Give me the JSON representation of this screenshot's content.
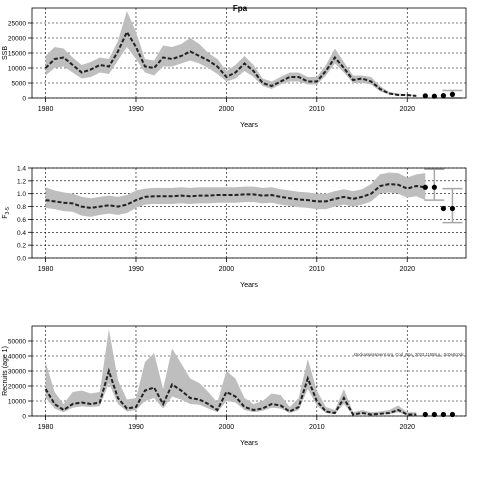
{
  "title": "Fpa",
  "watermark": "stockassessment.org, Cod_Fpa_2023.11558.g...0c0e0c0dc",
  "chart_data": [
    {
      "type": "line",
      "key": "ssb",
      "xlabel": "Years",
      "ylabel": "SSB",
      "xlim": [
        1978.5,
        2026.5
      ],
      "ylim": [
        0,
        30000
      ],
      "xticks": [
        1980,
        1990,
        2000,
        2010,
        2020
      ],
      "yticks": [
        0,
        5000,
        10000,
        15000,
        20000,
        25000
      ],
      "ytick_labels": [
        "0",
        "5000",
        "10000",
        "15000",
        "20000",
        "25000"
      ],
      "grid": true,
      "series": [
        {
          "x": [
            1980,
            1981,
            1982,
            1983,
            1984,
            1985,
            1986,
            1987,
            1988,
            1989,
            1990,
            1991,
            1992,
            1993,
            1994,
            1995,
            1996,
            1997,
            1998,
            1999,
            2000,
            2001,
            2002,
            2003,
            2004,
            2005,
            2006,
            2007,
            2008,
            2009,
            2010,
            2011,
            2012,
            2013,
            2014,
            2015,
            2016,
            2017,
            2018,
            2019,
            2020,
            2021
          ],
          "y": [
            10000,
            13000,
            13500,
            11000,
            8500,
            9500,
            11000,
            10500,
            15500,
            22000,
            17000,
            10500,
            10000,
            13500,
            13000,
            14000,
            15500,
            14000,
            12500,
            10500,
            7000,
            8500,
            11500,
            9000,
            5000,
            4000,
            5500,
            7000,
            7000,
            5500,
            5500,
            9000,
            13500,
            10000,
            6000,
            6500,
            5500,
            3000,
            1500,
            1000,
            1000,
            700
          ],
          "lower": [
            7500,
            10000,
            10500,
            8500,
            6500,
            7000,
            8500,
            8000,
            12500,
            17000,
            13000,
            8500,
            7500,
            10500,
            10500,
            11500,
            12500,
            11500,
            10000,
            8000,
            5500,
            6500,
            9000,
            7000,
            4000,
            3000,
            4500,
            5500,
            5500,
            4500,
            4500,
            7500,
            11500,
            8500,
            5000,
            5000,
            4500,
            2200,
            1200,
            800,
            800,
            500
          ],
          "upper": [
            14000,
            17000,
            16500,
            13500,
            11000,
            12000,
            13500,
            13000,
            19000,
            29000,
            22000,
            13000,
            12500,
            17500,
            17000,
            18000,
            20000,
            18000,
            15000,
            13000,
            9000,
            11000,
            14000,
            11000,
            6500,
            5500,
            7000,
            8500,
            8500,
            7000,
            7000,
            11000,
            16500,
            12000,
            7500,
            7500,
            7000,
            4000,
            2000,
            1500,
            1200,
            1000
          ]
        }
      ],
      "points": [
        {
          "x": 2022,
          "y": 700
        },
        {
          "x": 2023,
          "y": 600
        },
        {
          "x": 2024,
          "y": 800
        },
        {
          "x": 2025,
          "y": 1200
        }
      ],
      "point_ranges": [
        {
          "x": 2025,
          "lo": 0,
          "hi": 2500
        }
      ]
    },
    {
      "type": "line",
      "key": "f",
      "xlabel": "Years",
      "ylabel": "F3-5",
      "ylabel_main": "F",
      "ylabel_sub": "3-5",
      "xlim": [
        1978.5,
        2026.5
      ],
      "ylim": [
        0,
        1.4
      ],
      "xticks": [
        1980,
        1990,
        2000,
        2010,
        2020
      ],
      "yticks": [
        0.0,
        0.2,
        0.4,
        0.6,
        0.8,
        1.0,
        1.2,
        1.4
      ],
      "ytick_labels": [
        "0.0",
        "0.2",
        "0.4",
        "0.6",
        "0.8",
        "1.0",
        "1.2",
        "1.4"
      ],
      "grid": true,
      "series": [
        {
          "x": [
            1980,
            1981,
            1982,
            1983,
            1984,
            1985,
            1986,
            1987,
            1988,
            1989,
            1990,
            1991,
            1992,
            1993,
            1994,
            1995,
            1996,
            1997,
            1998,
            1999,
            2000,
            2001,
            2002,
            2003,
            2004,
            2005,
            2006,
            2007,
            2008,
            2009,
            2010,
            2011,
            2012,
            2013,
            2014,
            2015,
            2016,
            2017,
            2018,
            2019,
            2020,
            2021,
            2022
          ],
          "y": [
            0.9,
            0.88,
            0.86,
            0.85,
            0.8,
            0.78,
            0.8,
            0.82,
            0.8,
            0.83,
            0.9,
            0.95,
            0.96,
            0.96,
            0.96,
            0.97,
            0.96,
            0.97,
            0.97,
            0.98,
            0.98,
            0.98,
            0.99,
            0.99,
            0.97,
            0.98,
            0.95,
            0.93,
            0.91,
            0.9,
            0.88,
            0.88,
            0.92,
            0.95,
            0.92,
            0.95,
            1.0,
            1.12,
            1.15,
            1.14,
            1.08,
            1.12,
            1.1
          ],
          "lower": [
            0.78,
            0.76,
            0.73,
            0.72,
            0.66,
            0.64,
            0.67,
            0.69,
            0.67,
            0.7,
            0.78,
            0.83,
            0.84,
            0.84,
            0.84,
            0.85,
            0.84,
            0.85,
            0.85,
            0.86,
            0.86,
            0.86,
            0.87,
            0.87,
            0.85,
            0.86,
            0.83,
            0.81,
            0.79,
            0.78,
            0.76,
            0.76,
            0.8,
            0.83,
            0.8,
            0.83,
            0.88,
            1.0,
            1.02,
            1.0,
            0.94,
            0.96,
            0.9
          ],
          "upper": [
            1.1,
            1.05,
            1.02,
            1.0,
            0.95,
            0.93,
            0.95,
            0.97,
            0.95,
            0.98,
            1.05,
            1.08,
            1.09,
            1.09,
            1.09,
            1.1,
            1.09,
            1.1,
            1.1,
            1.1,
            1.1,
            1.1,
            1.11,
            1.11,
            1.09,
            1.1,
            1.07,
            1.05,
            1.03,
            1.02,
            1.0,
            1.0,
            1.04,
            1.07,
            1.04,
            1.07,
            1.15,
            1.3,
            1.33,
            1.32,
            1.25,
            1.3,
            1.32
          ]
        }
      ],
      "points": [
        {
          "x": 2022,
          "y": 1.1
        },
        {
          "x": 2023,
          "y": 1.1
        },
        {
          "x": 2024,
          "y": 0.77
        },
        {
          "x": 2025,
          "y": 0.77
        }
      ],
      "point_ranges": [
        {
          "x": 2023,
          "lo": 0.9,
          "hi": 1.38
        },
        {
          "x": 2025,
          "lo": 0.55,
          "hi": 1.08
        }
      ]
    },
    {
      "type": "line",
      "key": "rec",
      "xlabel": "Years",
      "ylabel": "Recruits (age 1)",
      "xlim": [
        1978.5,
        2026.5
      ],
      "ylim": [
        0,
        60000
      ],
      "xticks": [
        1980,
        1990,
        2000,
        2010,
        2020
      ],
      "yticks": [
        0,
        10000,
        20000,
        30000,
        40000,
        50000
      ],
      "ytick_labels": [
        "0",
        "10000",
        "20000",
        "30000",
        "40000",
        "50000"
      ],
      "grid": true,
      "series": [
        {
          "x": [
            1980,
            1981,
            1982,
            1983,
            1984,
            1985,
            1986,
            1987,
            1988,
            1989,
            1990,
            1991,
            1992,
            1993,
            1994,
            1995,
            1996,
            1997,
            1998,
            1999,
            2000,
            2001,
            2002,
            2003,
            2004,
            2005,
            2006,
            2007,
            2008,
            2009,
            2010,
            2011,
            2012,
            2013,
            2014,
            2015,
            2016,
            2017,
            2018,
            2019,
            2020,
            2021
          ],
          "y": [
            18000,
            8000,
            4000,
            8000,
            9000,
            8000,
            9000,
            30000,
            12000,
            5000,
            6000,
            17000,
            19000,
            8000,
            21000,
            17000,
            12000,
            11000,
            8000,
            4000,
            16000,
            13000,
            6000,
            4000,
            5000,
            8000,
            7000,
            3000,
            6000,
            25000,
            10000,
            3000,
            2000,
            12000,
            1000,
            2000,
            1000,
            1500,
            2000,
            4000,
            1000,
            1000
          ],
          "lower": [
            12000,
            5000,
            2500,
            5500,
            6500,
            6000,
            6500,
            22000,
            8000,
            3000,
            4000,
            10000,
            12000,
            5000,
            13000,
            11000,
            8000,
            7500,
            5000,
            2500,
            10000,
            9000,
            4000,
            2500,
            3500,
            5500,
            5000,
            2000,
            4000,
            18000,
            7000,
            2000,
            1200,
            8000,
            600,
            1200,
            600,
            1000,
            1200,
            2500,
            600,
            600
          ],
          "upper": [
            36000,
            16000,
            8000,
            16000,
            17000,
            15000,
            16000,
            58000,
            24000,
            11000,
            12000,
            36000,
            42000,
            18000,
            45000,
            35000,
            25000,
            22000,
            16000,
            9000,
            30000,
            25000,
            12000,
            8000,
            10000,
            15000,
            14000,
            6000,
            12000,
            38000,
            17000,
            6000,
            4000,
            18000,
            2500,
            4000,
            2500,
            3000,
            4000,
            7000,
            2500,
            2500
          ]
        }
      ],
      "points": [
        {
          "x": 2022,
          "y": 1000
        },
        {
          "x": 2023,
          "y": 1000
        },
        {
          "x": 2024,
          "y": 1000
        },
        {
          "x": 2025,
          "y": 1000
        }
      ],
      "point_ranges": []
    }
  ],
  "colors": {
    "band": "#bebebe",
    "line": "#222222",
    "dot": "#000000",
    "grid": "#000000",
    "range": "#a8a8a8"
  }
}
